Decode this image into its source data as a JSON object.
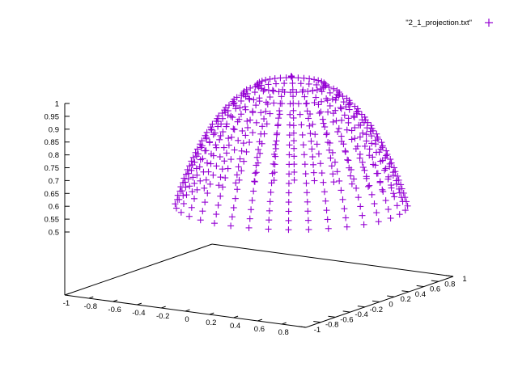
{
  "chart_data": {
    "type": "scatter",
    "title": "",
    "legend": {
      "placement": "top-right",
      "entry": "\"2_1_projection.txt\"",
      "marker": "+"
    },
    "series": [
      {
        "name": "\"2_1_projection.txt\"",
        "surface": "hemisphere z = sqrt(1 - x^2 - y^2)",
        "meridian_count": 36,
        "points_per_meridian": 16,
        "z_range": [
          0.5,
          1.0
        ],
        "color": "#9400d3"
      }
    ],
    "x_axis": {
      "range": [
        -1,
        1
      ],
      "ticks": [
        "-1",
        "-0.8",
        "-0.6",
        "-0.4",
        "-0.2",
        "0",
        "0.2",
        "0.4",
        "0.6",
        "0.8"
      ],
      "values": [
        -1,
        -0.8,
        -0.6,
        -0.4,
        -0.2,
        0,
        0.2,
        0.4,
        0.6,
        0.8
      ]
    },
    "y_axis": {
      "range": [
        -1,
        1
      ],
      "ticks": [
        "-1",
        "-0.8",
        "-0.6",
        "-0.4",
        "-0.2",
        "0",
        "0.2",
        "0.4",
        "0.6",
        "0.8",
        "1"
      ],
      "values": [
        -1,
        -0.8,
        -0.6,
        -0.4,
        -0.2,
        0,
        0.2,
        0.4,
        0.6,
        0.8,
        1
      ]
    },
    "z_axis": {
      "range": [
        0.5,
        1.0
      ],
      "ticks": [
        "0.5",
        "0.55",
        "0.6",
        "0.65",
        "0.7",
        "0.75",
        "0.8",
        "0.85",
        "0.9",
        "0.95",
        "1"
      ],
      "values": [
        0.5,
        0.55,
        0.6,
        0.65,
        0.7,
        0.75,
        0.8,
        0.85,
        0.9,
        0.95,
        1.0
      ]
    },
    "grid": false
  }
}
